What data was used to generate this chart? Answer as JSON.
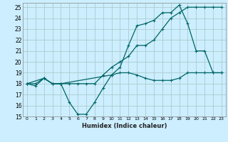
{
  "xlabel": "Humidex (Indice chaleur)",
  "bg_color": "#cceeff",
  "grid_color": "#aacccc",
  "line_color": "#006666",
  "xlim": [
    -0.5,
    23.5
  ],
  "ylim": [
    15,
    25.4
  ],
  "xticks": [
    0,
    1,
    2,
    3,
    4,
    5,
    6,
    7,
    8,
    9,
    10,
    11,
    12,
    13,
    14,
    15,
    16,
    17,
    18,
    19,
    20,
    21,
    22,
    23
  ],
  "yticks": [
    15,
    16,
    17,
    18,
    19,
    20,
    21,
    22,
    23,
    24,
    25
  ],
  "line1_x": [
    0,
    1,
    2,
    3,
    4,
    5,
    6,
    7,
    8,
    9,
    10,
    11,
    12,
    13,
    14,
    15,
    16,
    17,
    18,
    19,
    20,
    21,
    22,
    23
  ],
  "line1_y": [
    18,
    17.8,
    18.5,
    18,
    18,
    16.3,
    15.2,
    15.2,
    16.3,
    17.6,
    18.8,
    19,
    19.0,
    18.8,
    18.5,
    18.3,
    18.3,
    18.3,
    18.5,
    19,
    19,
    19,
    19,
    19
  ],
  "line2_x": [
    0,
    1,
    2,
    3,
    4,
    5,
    6,
    7,
    8,
    9,
    10,
    11,
    12,
    13,
    14,
    15,
    16,
    17,
    18,
    19,
    20,
    21,
    22,
    23
  ],
  "line2_y": [
    18,
    18,
    18.5,
    18,
    18,
    18,
    18,
    18,
    18,
    18.8,
    19.5,
    20,
    20.5,
    21.5,
    21.5,
    22,
    23,
    24,
    24.5,
    25,
    25,
    25,
    25,
    25
  ],
  "line3_x": [
    0,
    2,
    3,
    4,
    10,
    11,
    12,
    13,
    14,
    15,
    16,
    17,
    18,
    19,
    20,
    21,
    22,
    23
  ],
  "line3_y": [
    18,
    18.5,
    18,
    18,
    18.8,
    19.5,
    21.5,
    23.3,
    23.5,
    23.8,
    24.5,
    24.5,
    25.2,
    23.5,
    21,
    21,
    19,
    19
  ]
}
